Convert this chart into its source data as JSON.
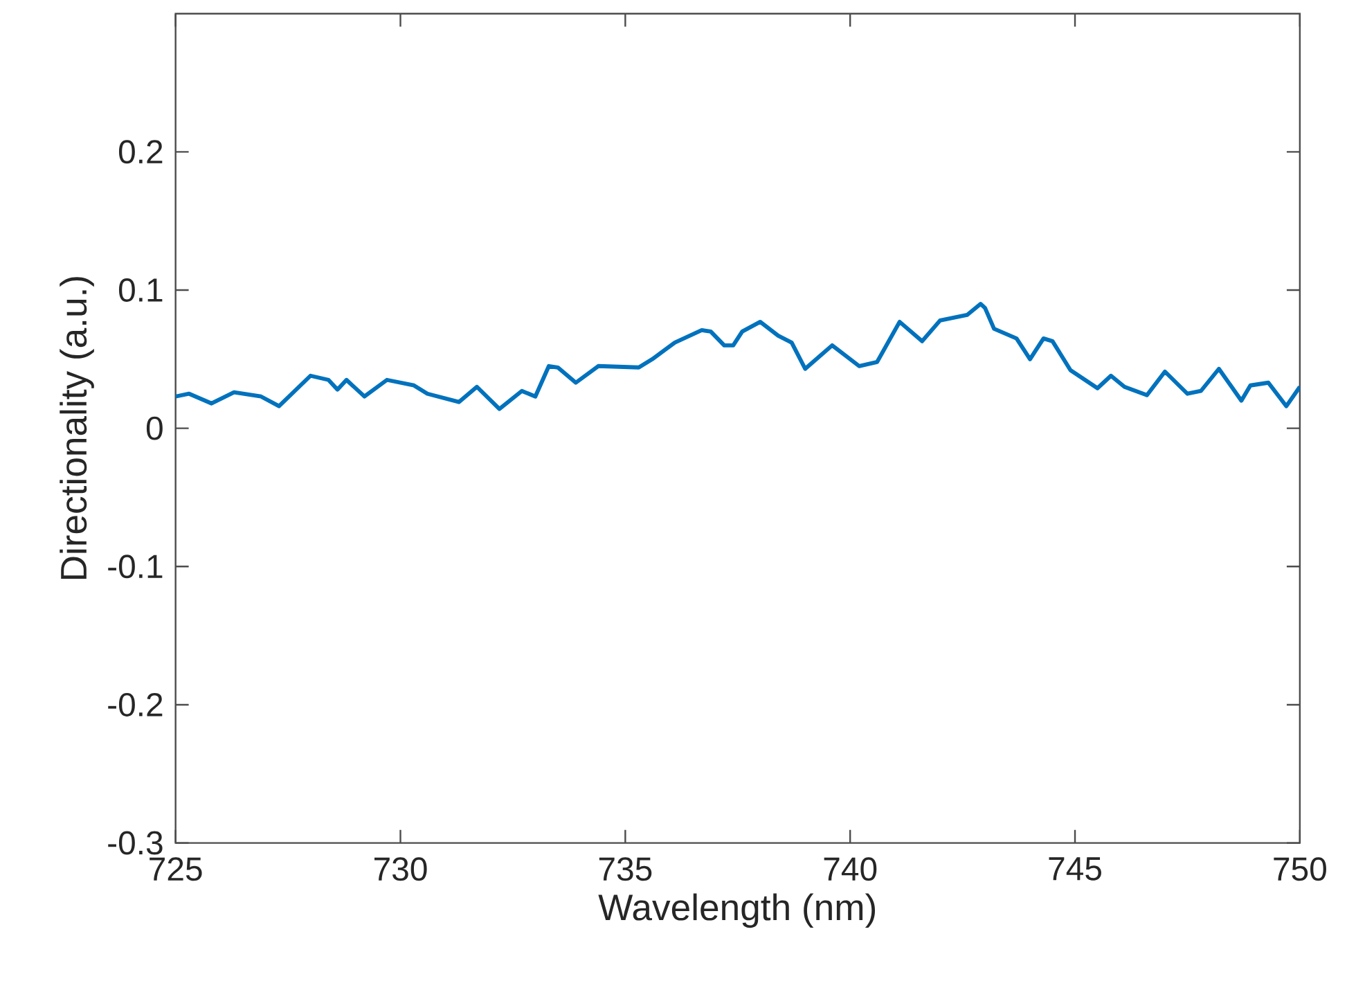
{
  "chart_data": {
    "type": "line",
    "xlabel": "Wavelength (nm)",
    "ylabel": "Directionality (a.u.)",
    "xlim": [
      725,
      750
    ],
    "xticks": [
      725,
      730,
      735,
      740,
      745,
      750
    ],
    "ylim": [
      -0.3,
      0.3
    ],
    "yticks": [
      -0.3,
      -0.2,
      -0.1,
      0,
      0.1,
      0.2
    ],
    "grid": false,
    "marker": "none",
    "line_style": "solid",
    "series": [
      {
        "color": "#0072bd",
        "x": [
          725,
          725.3,
          725.8,
          726.3,
          726.9,
          727.3,
          728.0,
          728.4,
          728.6,
          728.8,
          729.2,
          729.7,
          730.3,
          730.6,
          731.3,
          731.7,
          732.2,
          732.7,
          733.0,
          733.3,
          733.5,
          733.9,
          734.4,
          735.3,
          735.6,
          736.1,
          736.7,
          736.9,
          737.2,
          737.4,
          737.6,
          738.0,
          738.4,
          738.7,
          739.0,
          739.6,
          740.2,
          740.6,
          741.1,
          741.6,
          742.0,
          742.6,
          742.9,
          743.0,
          743.2,
          743.7,
          744.0,
          744.3,
          744.5,
          744.9,
          745.5,
          745.8,
          746.1,
          746.6,
          747.0,
          747.5,
          747.8,
          748.2,
          748.7,
          748.9,
          749.3,
          749.7,
          750.0
        ],
        "values": [
          0.023,
          0.025,
          0.018,
          0.026,
          0.023,
          0.016,
          0.038,
          0.035,
          0.028,
          0.035,
          0.023,
          0.035,
          0.031,
          0.025,
          0.019,
          0.03,
          0.014,
          0.027,
          0.023,
          0.045,
          0.044,
          0.033,
          0.045,
          0.044,
          0.05,
          0.062,
          0.071,
          0.07,
          0.06,
          0.06,
          0.07,
          0.077,
          0.067,
          0.062,
          0.043,
          0.06,
          0.045,
          0.048,
          0.077,
          0.063,
          0.078,
          0.082,
          0.09,
          0.087,
          0.072,
          0.065,
          0.05,
          0.065,
          0.063,
          0.042,
          0.029,
          0.038,
          0.03,
          0.024,
          0.041,
          0.025,
          0.027,
          0.043,
          0.02,
          0.031,
          0.033,
          0.016,
          0.03
        ]
      }
    ]
  }
}
